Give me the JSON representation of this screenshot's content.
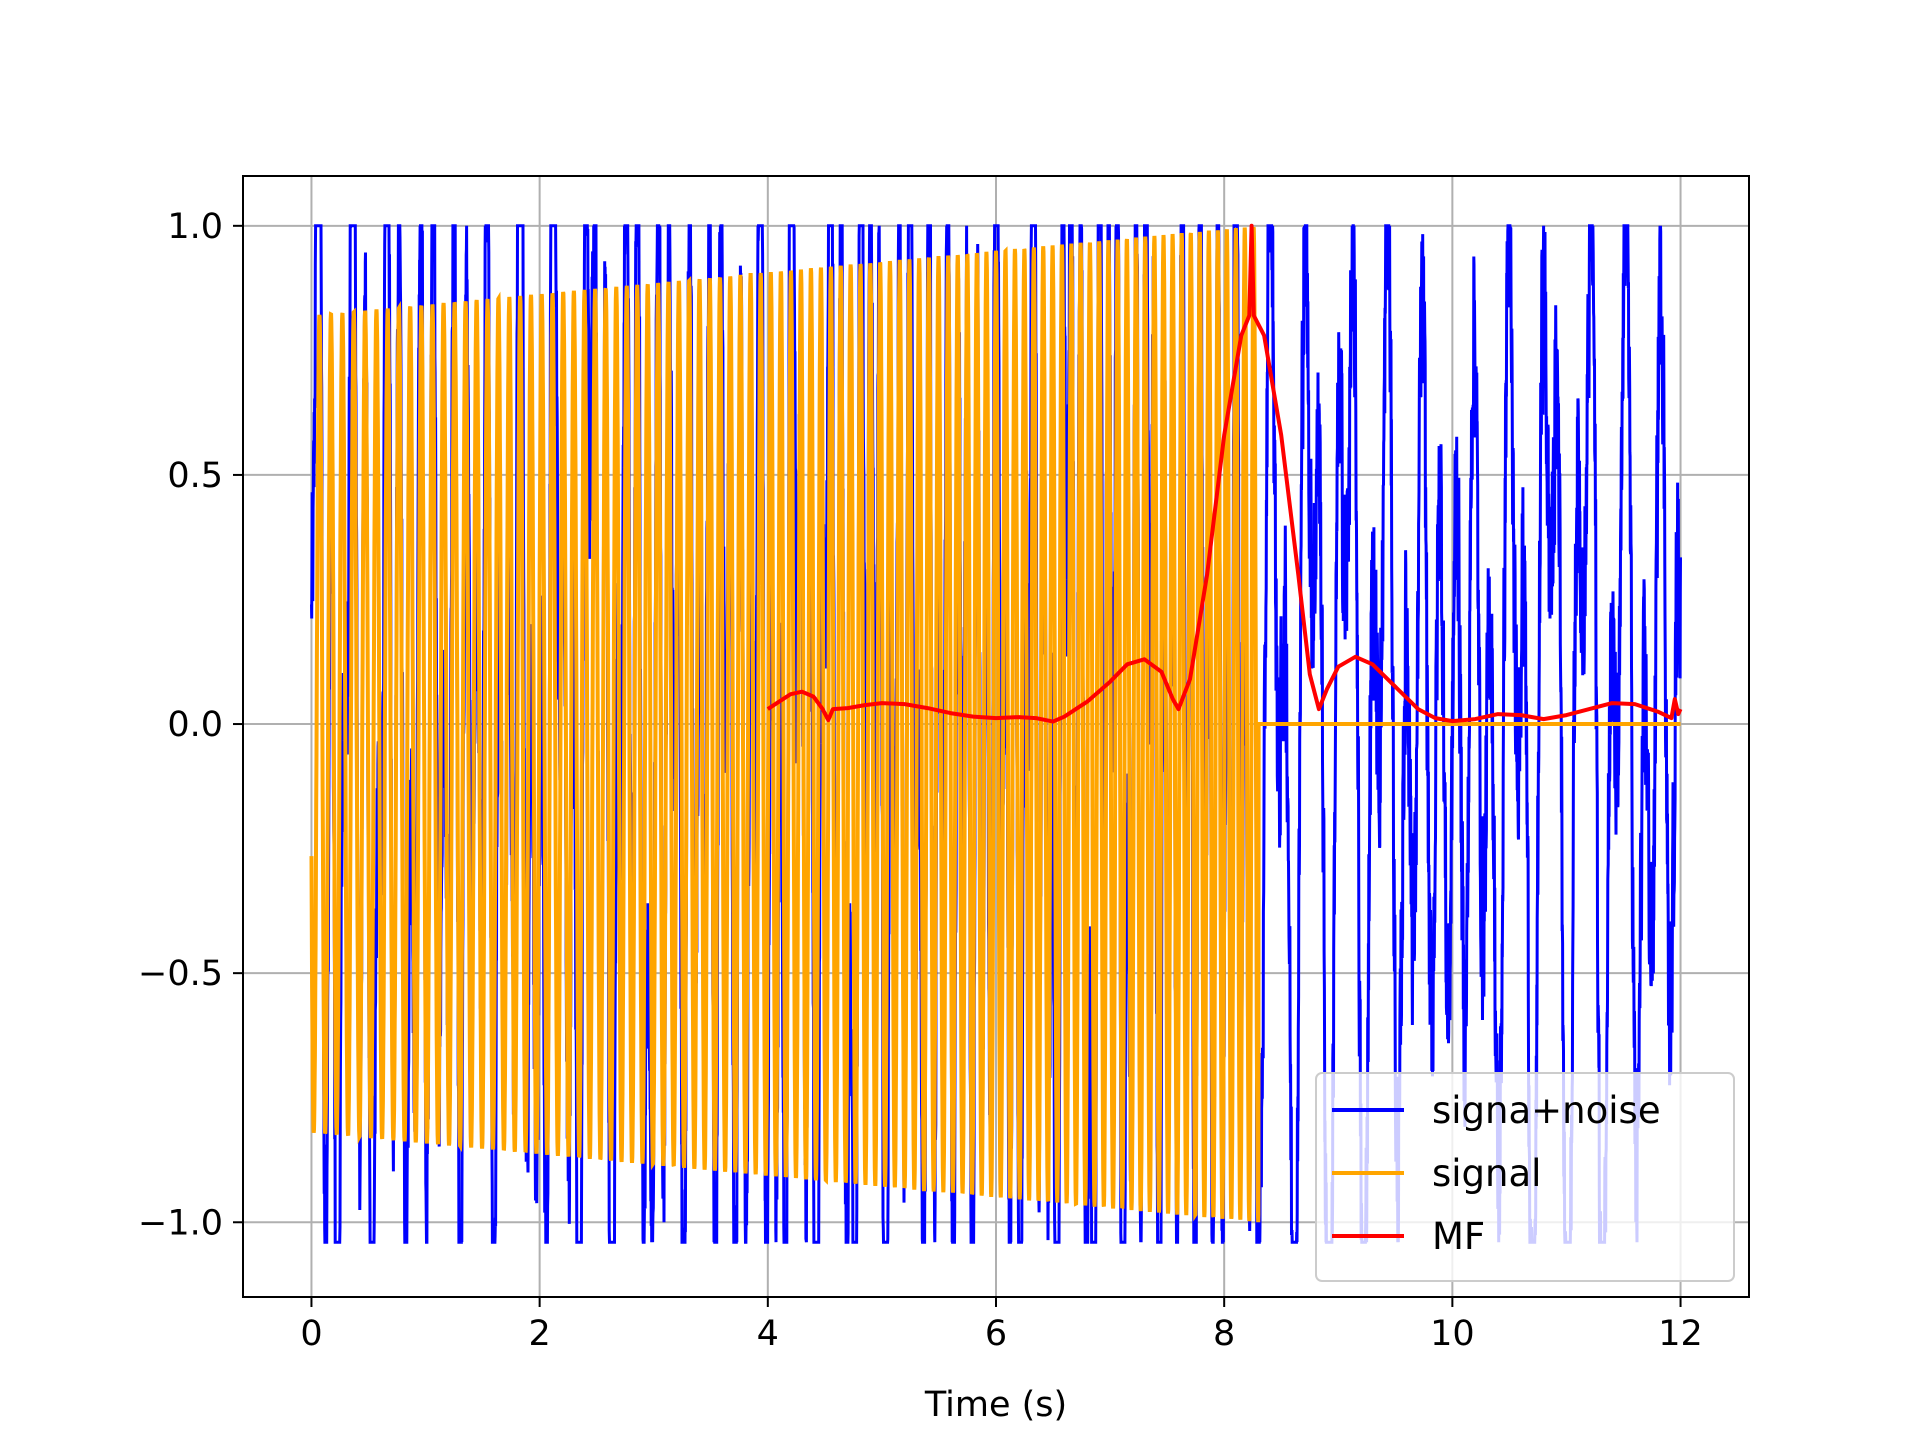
{
  "chart_data": {
    "type": "line",
    "title": "",
    "xlabel": "Time (s)",
    "ylabel": "",
    "xlim": [
      -0.6,
      12.6
    ],
    "ylim": [
      -1.15,
      1.1
    ],
    "xticks": [
      0,
      2,
      4,
      6,
      8,
      10,
      12
    ],
    "xtick_labels": [
      "0",
      "2",
      "4",
      "6",
      "8",
      "10",
      "12"
    ],
    "yticks": [
      -1.0,
      -0.5,
      0.0,
      0.5,
      1.0
    ],
    "ytick_labels": [
      "−1.0",
      "−0.5",
      "0.0",
      "0.5",
      "1.0"
    ],
    "grid": true,
    "legend_position": "lower-right",
    "series": [
      {
        "name": "signa+noise",
        "color": "#0000ff",
        "kind": "signal plus noise, sampled 0 to 12 s",
        "x_range": [
          0,
          12
        ],
        "approx_peaks": [
          {
            "x": 0.02,
            "y": 0.19
          },
          {
            "x": 1.0,
            "y": 0.69
          },
          {
            "x": 3.25,
            "y": 0.83
          },
          {
            "x": 5.75,
            "y": -0.94
          },
          {
            "x": 5.9,
            "y": -0.94
          },
          {
            "x": 9.0,
            "y": -0.8
          },
          {
            "x": 10.0,
            "y": -1.0
          },
          {
            "x": 11.3,
            "y": 0.97
          },
          {
            "x": 11.45,
            "y": 1.0
          },
          {
            "x": 11.4,
            "y": -1.04
          }
        ]
      },
      {
        "name": "signal",
        "color": "#ffa500",
        "kind": "linear chirp, amplitude rising from 0.82 at t=0 to 1.0 at t=8.3, zero after",
        "x_range": [
          0,
          12
        ],
        "amplitude_start": 0.82,
        "amplitude_end": 1.0,
        "chirp_end_time": 8.3
      },
      {
        "name": "MF",
        "color": "#ff0000",
        "kind": "matched filter output, 4 to 12 s",
        "points": [
          [
            4.0,
            0.03
          ],
          [
            4.1,
            0.045
          ],
          [
            4.2,
            0.06
          ],
          [
            4.3,
            0.065
          ],
          [
            4.4,
            0.055
          ],
          [
            4.48,
            0.03
          ],
          [
            4.53,
            0.008
          ],
          [
            4.57,
            0.03
          ],
          [
            4.7,
            0.032
          ],
          [
            4.85,
            0.038
          ],
          [
            5.0,
            0.042
          ],
          [
            5.2,
            0.04
          ],
          [
            5.4,
            0.032
          ],
          [
            5.6,
            0.022
          ],
          [
            5.8,
            0.015
          ],
          [
            6.0,
            0.012
          ],
          [
            6.2,
            0.014
          ],
          [
            6.35,
            0.012
          ],
          [
            6.5,
            0.005
          ],
          [
            6.6,
            0.015
          ],
          [
            6.8,
            0.045
          ],
          [
            7.0,
            0.085
          ],
          [
            7.15,
            0.12
          ],
          [
            7.3,
            0.13
          ],
          [
            7.45,
            0.105
          ],
          [
            7.55,
            0.05
          ],
          [
            7.6,
            0.03
          ],
          [
            7.7,
            0.09
          ],
          [
            7.85,
            0.3
          ],
          [
            8.0,
            0.58
          ],
          [
            8.15,
            0.78
          ],
          [
            8.22,
            0.82
          ],
          [
            8.24,
            1.0
          ],
          [
            8.26,
            0.82
          ],
          [
            8.35,
            0.78
          ],
          [
            8.5,
            0.58
          ],
          [
            8.65,
            0.3
          ],
          [
            8.75,
            0.1
          ],
          [
            8.83,
            0.03
          ],
          [
            8.9,
            0.07
          ],
          [
            9.0,
            0.115
          ],
          [
            9.15,
            0.135
          ],
          [
            9.3,
            0.12
          ],
          [
            9.5,
            0.075
          ],
          [
            9.7,
            0.03
          ],
          [
            9.85,
            0.012
          ],
          [
            10.0,
            0.006
          ],
          [
            10.2,
            0.01
          ],
          [
            10.4,
            0.02
          ],
          [
            10.6,
            0.018
          ],
          [
            10.8,
            0.01
          ],
          [
            11.0,
            0.018
          ],
          [
            11.2,
            0.03
          ],
          [
            11.4,
            0.042
          ],
          [
            11.6,
            0.04
          ],
          [
            11.8,
            0.025
          ],
          [
            11.92,
            0.012
          ],
          [
            11.95,
            0.05
          ],
          [
            11.98,
            0.02
          ],
          [
            12.0,
            0.03
          ]
        ]
      }
    ]
  }
}
